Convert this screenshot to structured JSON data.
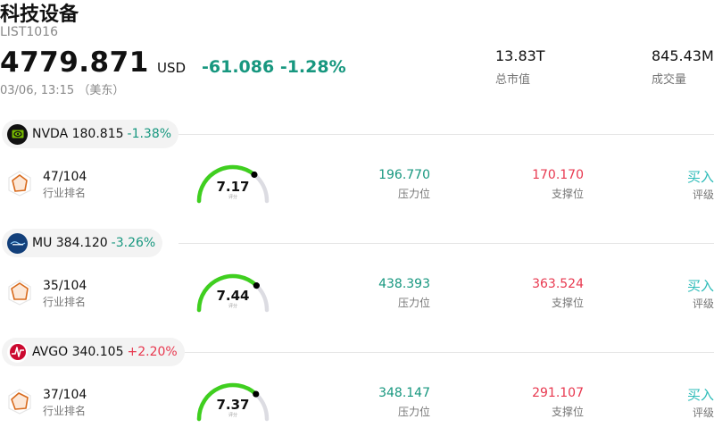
{
  "header": {
    "title": "科技设备",
    "code": "LIST1016",
    "price": "4779.871",
    "currency": "USD",
    "change": "-61.086 -1.28%",
    "time": "03/06, 13:15 （美东）"
  },
  "stats": {
    "market_cap_value": "13.83T",
    "market_cap_label": "总市值",
    "volume_value": "845.43M",
    "volume_label": "成交量"
  },
  "labels": {
    "rank": "行业排名",
    "score": "评分",
    "resistance": "压力位",
    "support": "支撑位",
    "rating": "评级"
  },
  "stocks": [
    {
      "ticker_price": "NVDA 180.815",
      "change": "-1.38%",
      "change_dir": "neg",
      "logo_icon": "nvidia-logo-icon",
      "rank": "47/104",
      "score": "7.17",
      "score_fraction": 0.717,
      "resistance": "196.770",
      "support": "170.170",
      "rating": "买入"
    },
    {
      "ticker_price": "MU 384.120",
      "change": "-3.26%",
      "change_dir": "neg",
      "logo_icon": "micron-logo-icon",
      "rank": "35/104",
      "score": "7.44",
      "score_fraction": 0.744,
      "resistance": "438.393",
      "support": "363.524",
      "rating": "买入"
    },
    {
      "ticker_price": "AVGO 340.105",
      "change": "+2.20%",
      "change_dir": "pos",
      "logo_icon": "broadcom-logo-icon",
      "rank": "37/104",
      "score": "7.37",
      "score_fraction": 0.737,
      "resistance": "348.147",
      "support": "291.107",
      "rating": "买入"
    }
  ],
  "colors": {
    "negative": "#17977f",
    "positive": "#e8384f",
    "rating": "#2bbbb8",
    "gauge_fill": "#3fcf1f",
    "gauge_track": "#dcdce2"
  }
}
